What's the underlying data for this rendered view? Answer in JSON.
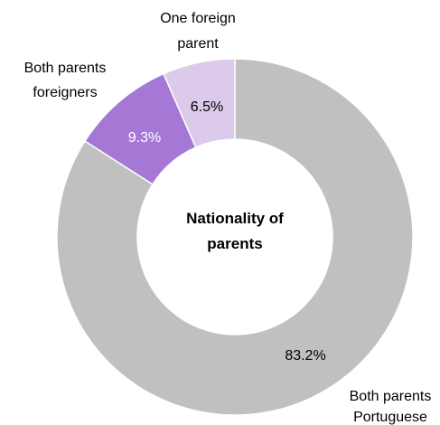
{
  "chart_data": {
    "type": "pie",
    "variant": "donut",
    "title": "Nationality of parents",
    "slices": [
      {
        "label": "Both parents Portuguese",
        "value": 83.2,
        "value_label": "83.2%",
        "color": "#c0c0c0"
      },
      {
        "label": "Both parents foreigners",
        "value": 9.3,
        "value_label": "9.3%",
        "color": "#a678d6"
      },
      {
        "label": "One foreign parent",
        "value": 6.5,
        "value_label": "6.5%",
        "color": "#dccaea"
      }
    ]
  }
}
